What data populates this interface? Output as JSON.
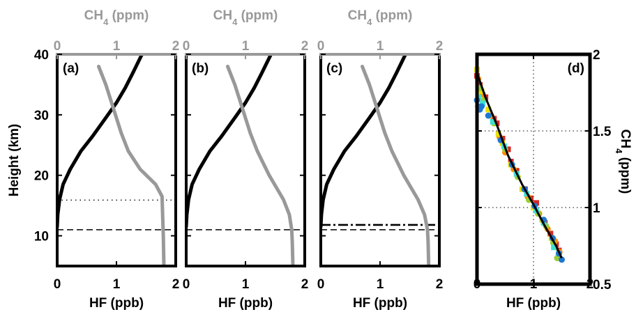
{
  "chart_data": [
    {
      "type": "line",
      "panel_label": "(a)",
      "xlabel": "HF (ppb)",
      "top_xlabel": "CH",
      "top_xlabel_sub": "4",
      "top_xlabel_unit": " (ppm)",
      "ylabel": "Height (km)",
      "xlim": [
        0,
        2.0
      ],
      "top_xlim": [
        0,
        2
      ],
      "ylim": [
        5,
        40
      ],
      "xticks": [
        0,
        1,
        2
      ],
      "xtick_labels": [
        "0",
        "1",
        "2"
      ],
      "top_xtick_labels": [
        "0",
        "1",
        "2"
      ],
      "yticks": [
        10,
        20,
        30,
        40
      ],
      "ytick_labels": [
        "10",
        "20",
        "30",
        "40"
      ],
      "series": [
        {
          "axis": "HF",
          "color": "#000000",
          "x": [
            0.0,
            0.01,
            0.04,
            0.1,
            0.22,
            0.4,
            0.6,
            0.82,
            1.0,
            1.15,
            1.28,
            1.43
          ],
          "y": [
            11.5,
            13.5,
            16.0,
            18.5,
            21.0,
            24.0,
            26.5,
            29.5,
            32.0,
            34.5,
            37.0,
            40.0
          ]
        },
        {
          "axis": "CH4",
          "color": "#999999",
          "x": [
            1.8,
            1.79,
            1.78,
            1.77,
            1.66,
            1.4,
            1.2,
            1.08,
            0.95,
            0.82,
            0.7
          ],
          "y": [
            5.0,
            10.0,
            13.0,
            16.5,
            18.5,
            21.0,
            24.0,
            27.0,
            31.0,
            35.0,
            38.0
          ]
        }
      ],
      "reference_lines": [
        {
          "style": "dotted",
          "height_km": 15.9
        },
        {
          "style": "dashed",
          "height_km": 11.0
        }
      ]
    },
    {
      "type": "line",
      "panel_label": "(b)",
      "xlabel": "HF (ppb)",
      "top_xlabel": "CH",
      "top_xlabel_sub": "4",
      "top_xlabel_unit": " (ppm)",
      "xlim": [
        0,
        2.0
      ],
      "top_xlim": [
        0,
        2
      ],
      "ylim": [
        5,
        40
      ],
      "xticks": [
        0,
        1,
        2
      ],
      "xtick_labels": [
        "0",
        "1",
        "2"
      ],
      "top_xtick_labels": [
        "0",
        "1",
        "2"
      ],
      "series": [
        {
          "axis": "HF",
          "color": "#000000",
          "x": [
            0.0,
            0.01,
            0.04,
            0.1,
            0.22,
            0.4,
            0.6,
            0.82,
            1.0,
            1.15,
            1.28,
            1.43
          ],
          "y": [
            11.5,
            13.5,
            16.0,
            18.5,
            21.0,
            24.0,
            26.5,
            29.5,
            32.0,
            34.5,
            37.0,
            40.0
          ]
        },
        {
          "axis": "CH4",
          "color": "#999999",
          "x": [
            1.8,
            1.79,
            1.78,
            1.74,
            1.64,
            1.4,
            1.2,
            1.08,
            0.95,
            0.82,
            0.7
          ],
          "y": [
            5.0,
            9.0,
            11.0,
            13.5,
            16.0,
            20.0,
            24.0,
            27.0,
            31.0,
            35.0,
            38.0
          ]
        }
      ],
      "reference_lines": [
        {
          "style": "dashed",
          "height_km": 11.0
        }
      ]
    },
    {
      "type": "line",
      "panel_label": "(c)",
      "xlabel": "HF (ppb)",
      "top_xlabel": "CH",
      "top_xlabel_sub": "4",
      "top_xlabel_unit": " (ppm)",
      "xlim": [
        0,
        2.0
      ],
      "top_xlim": [
        0,
        2
      ],
      "ylim": [
        5,
        40
      ],
      "xticks": [
        0,
        1,
        2
      ],
      "xtick_labels": [
        "0",
        "1",
        "2"
      ],
      "top_xtick_labels": [
        "0",
        "1",
        "2"
      ],
      "series": [
        {
          "axis": "HF",
          "color": "#000000",
          "x": [
            0.0,
            0.01,
            0.04,
            0.1,
            0.22,
            0.4,
            0.6,
            0.82,
            1.0,
            1.15,
            1.28,
            1.43
          ],
          "y": [
            11.5,
            13.5,
            16.0,
            18.5,
            21.0,
            24.0,
            26.5,
            29.5,
            32.0,
            34.5,
            37.0,
            40.0
          ]
        },
        {
          "axis": "CH4",
          "color": "#999999",
          "x": [
            1.82,
            1.81,
            1.8,
            1.75,
            1.64,
            1.4,
            1.2,
            1.08,
            0.95,
            0.82,
            0.7
          ],
          "y": [
            5.0,
            9.0,
            11.0,
            13.5,
            16.0,
            20.0,
            24.0,
            27.0,
            31.0,
            35.0,
            38.0
          ]
        }
      ],
      "reference_lines": [
        {
          "style": "dashdot",
          "height_km": 11.8
        },
        {
          "style": "dashed",
          "height_km": 11.0
        }
      ]
    },
    {
      "type": "scatter",
      "panel_label": "(d)",
      "xlabel": "HF (ppb)",
      "ylabel": "CH",
      "ylabel_sub": "4",
      "ylabel_unit": " (ppm)",
      "xlim": [
        0,
        2
      ],
      "ylim": [
        0.5,
        2
      ],
      "xticks": [
        0,
        1,
        2
      ],
      "xtick_labels": [
        "0",
        "1",
        "2"
      ],
      "yticks": [
        0.5,
        1,
        1.5,
        2
      ],
      "ytick_labels": [
        "0.5",
        "1",
        "1.5",
        "2"
      ],
      "grid": true,
      "fit_line": {
        "color": "#000000",
        "x": [
          0.0,
          0.15,
          0.35,
          0.55,
          0.8,
          1.0,
          1.2,
          1.4,
          1.5
        ],
        "y": [
          1.88,
          1.72,
          1.54,
          1.34,
          1.15,
          1.02,
          0.88,
          0.75,
          0.67
        ]
      },
      "series": [
        {
          "name": "",
          "color": "#d62728",
          "x": [
            0.0,
            0.05,
            0.15,
            0.3,
            0.45,
            0.55,
            0.7,
            0.85,
            0.95,
            1.05,
            1.2,
            1.3,
            1.4,
            1.45,
            0.6,
            0.35
          ],
          "y": [
            1.86,
            1.8,
            1.72,
            1.58,
            1.45,
            1.38,
            1.24,
            1.12,
            1.06,
            1.03,
            0.9,
            0.83,
            0.76,
            0.72,
            1.3,
            1.55
          ]
        },
        {
          "name": "",
          "color": "#ff8c00",
          "x": [
            0.02,
            0.1,
            0.25,
            0.4,
            0.65,
            0.9,
            1.1,
            1.25,
            1.38,
            1.46,
            0.5
          ],
          "y": [
            1.84,
            1.74,
            1.6,
            1.46,
            1.25,
            1.07,
            0.96,
            0.86,
            0.78,
            0.71,
            1.36
          ]
        },
        {
          "name": "",
          "color": "#e8e000",
          "x": [
            0.0,
            0.08,
            0.2,
            0.38,
            0.6,
            0.8,
            1.0,
            1.15,
            1.32,
            1.44,
            0.45
          ],
          "y": [
            1.9,
            1.76,
            1.64,
            1.48,
            1.28,
            1.12,
            1.0,
            0.92,
            0.8,
            0.68,
            1.42
          ]
        },
        {
          "name": "",
          "color": "#9acd32",
          "x": [
            0.05,
            0.12,
            0.3,
            0.5,
            0.72,
            0.92,
            1.08,
            1.22,
            1.35,
            1.42
          ],
          "y": [
            1.78,
            1.7,
            1.55,
            1.38,
            1.2,
            1.05,
            0.96,
            0.88,
            0.77,
            0.67
          ]
        },
        {
          "name": "",
          "color": "#40e0d0",
          "x": [
            0.03,
            0.1,
            0.28,
            0.48,
            0.7,
            0.88,
            1.05,
            1.18,
            1.36,
            1.45
          ],
          "y": [
            1.72,
            1.68,
            1.56,
            1.4,
            1.22,
            1.09,
            0.98,
            0.9,
            0.74,
            0.7
          ]
        },
        {
          "name": "",
          "color": "#1e78d2",
          "x": [
            0.0,
            0.02,
            0.05,
            0.08,
            0.2,
            0.42,
            0.62,
            0.84,
            1.02,
            1.18,
            1.34,
            1.45,
            1.5
          ],
          "y": [
            1.7,
            1.66,
            1.64,
            1.66,
            1.6,
            1.44,
            1.28,
            1.12,
            1.01,
            0.92,
            0.8,
            0.7,
            0.66
          ]
        }
      ]
    }
  ]
}
